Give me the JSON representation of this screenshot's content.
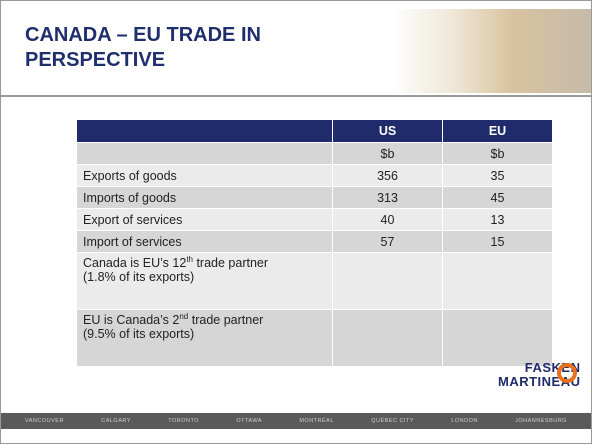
{
  "header": {
    "title": "CANADA – EU TRADE IN PERSPECTIVE"
  },
  "table": {
    "columns": [
      "US",
      "EU"
    ],
    "units": [
      "$b",
      "$b"
    ],
    "rows": [
      {
        "label": "Exports of goods",
        "values": [
          356,
          35
        ]
      },
      {
        "label": "Imports of goods",
        "values": [
          313,
          45
        ]
      },
      {
        "label": "Export of services",
        "values": [
          40,
          13
        ]
      },
      {
        "label": "Import of services",
        "values": [
          57,
          15
        ]
      }
    ],
    "notes": [
      {
        "before": "Canada is EU’s 12",
        "sup": "th",
        "after": " trade partner",
        "detail": "(1.8% of its exports)"
      },
      {
        "before": "EU is Canada’s 2",
        "sup": "nd",
        "after": " trade partner",
        "detail": "(9.5% of its exports)"
      }
    ]
  },
  "logo": {
    "line1": "FASKEN",
    "line2": "MARTINEAU"
  },
  "footer": {
    "cities": [
      "VANCOUVER",
      "CALGARY",
      "TORONTO",
      "OTTAWA",
      "MONTRÉAL",
      "QUÉBEC CITY",
      "LONDON",
      "JOHANNESBURG"
    ]
  }
}
